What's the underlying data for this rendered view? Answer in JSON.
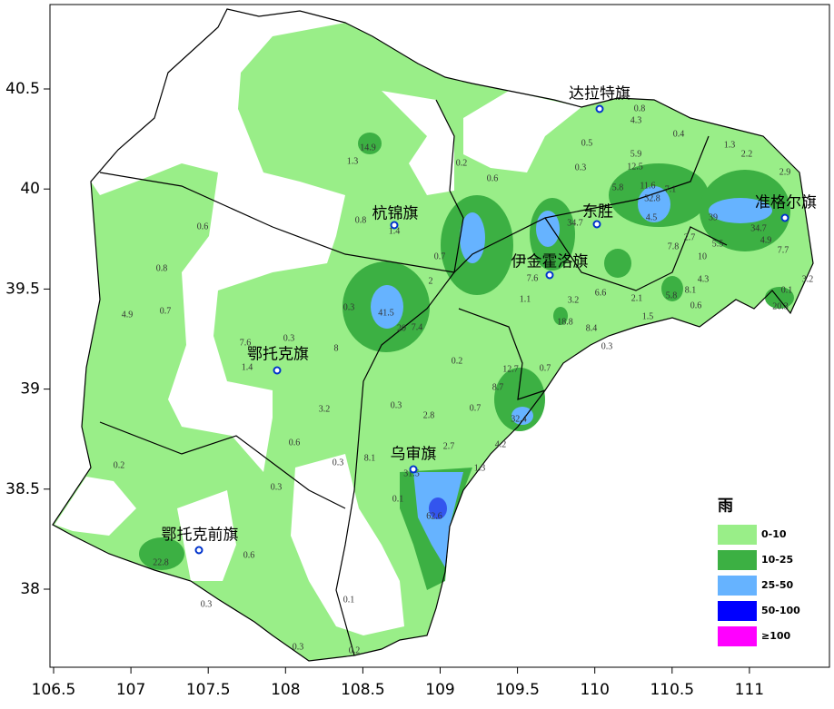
{
  "map": {
    "xticks": [
      106.5,
      107,
      107.5,
      108,
      108.5,
      109,
      109.5,
      110,
      110.5,
      111
    ],
    "yticks": [
      40.5,
      40,
      39.5,
      39,
      38.5,
      38
    ],
    "cities": [
      "达拉特旗",
      "杭锦旗",
      "准格尔旗",
      "东胜",
      "伊金霍洛旗",
      "鄂托克旗",
      "乌审旗",
      "鄂托克前旗"
    ],
    "stations": [
      14.9,
      1.3,
      0.2,
      0.6,
      0.6,
      0.8,
      0.7,
      4.9,
      0.8,
      1.4,
      41.5,
      20,
      0.3,
      2,
      0.7,
      7.4,
      7.6,
      0.3,
      1.4,
      8,
      3.2,
      0.6,
      0.3,
      0.3,
      2.8,
      0.2,
      0.7,
      8.1,
      2.7,
      31.5,
      0.1,
      62.6,
      4.2,
      1.3,
      8.7,
      12.7,
      32.4,
      0.7,
      0.2,
      0.3,
      0.6,
      22.8,
      0.3,
      0.1,
      0.3,
      0.2,
      0.5,
      0.3,
      4.3,
      0.8,
      5.9,
      12.5,
      0.4,
      1.3,
      2.2,
      2.9,
      32.8,
      11.6,
      7.1,
      34.7,
      39,
      4.9,
      7.7,
      4.3,
      10,
      5.5,
      3.2,
      0.1,
      20.3,
      2.7,
      7.8,
      8.1,
      5.8,
      0.6,
      1.5,
      34.7,
      7.6,
      1.1,
      3.2,
      18.8,
      8.4,
      0.3,
      6.6,
      5.8,
      4.5,
      2.1
    ],
    "legend": {
      "title": "雨",
      "items": [
        {
          "label": "0-10",
          "color": "#99ee88"
        },
        {
          "label": "10-25",
          "color": "#3cb043"
        },
        {
          "label": "25-50",
          "color": "#66b3ff"
        },
        {
          "label": "50-100",
          "color": "#0000ff"
        },
        {
          "label": "≥100",
          "color": "#ff00ff"
        }
      ]
    }
  }
}
